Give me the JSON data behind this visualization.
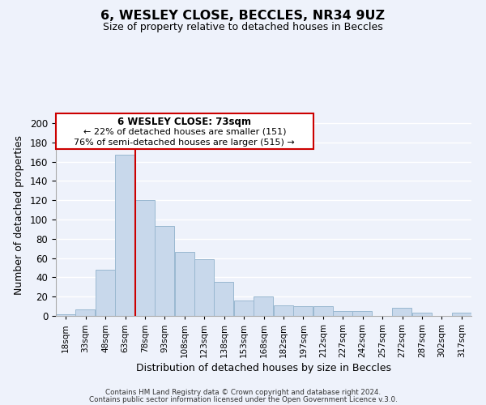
{
  "title": "6, WESLEY CLOSE, BECCLES, NR34 9UZ",
  "subtitle": "Size of property relative to detached houses in Beccles",
  "xlabel": "Distribution of detached houses by size in Beccles",
  "ylabel": "Number of detached properties",
  "bar_color": "#c8d8eb",
  "bar_edgecolor": "#9ab8d0",
  "vline_x": 78,
  "vline_color": "#cc0000",
  "categories": [
    "18sqm",
    "33sqm",
    "48sqm",
    "63sqm",
    "78sqm",
    "93sqm",
    "108sqm",
    "123sqm",
    "138sqm",
    "153sqm",
    "168sqm",
    "182sqm",
    "197sqm",
    "212sqm",
    "227sqm",
    "242sqm",
    "257sqm",
    "272sqm",
    "287sqm",
    "302sqm",
    "317sqm"
  ],
  "values": [
    2,
    7,
    48,
    167,
    120,
    93,
    66,
    59,
    35,
    16,
    20,
    11,
    10,
    10,
    5,
    5,
    0,
    8,
    3,
    0,
    3
  ],
  "bin_width": 15,
  "ylim": [
    0,
    210
  ],
  "yticks": [
    0,
    20,
    40,
    60,
    80,
    100,
    120,
    140,
    160,
    180,
    200
  ],
  "annotation_title": "6 WESLEY CLOSE: 73sqm",
  "annotation_line1": "← 22% of detached houses are smaller (151)",
  "annotation_line2": "76% of semi-detached houses are larger (515) →",
  "annotation_box_color": "white",
  "annotation_box_edgecolor": "#cc0000",
  "footer_line1": "Contains HM Land Registry data © Crown copyright and database right 2024.",
  "footer_line2": "Contains public sector information licensed under the Open Government Licence v.3.0.",
  "background_color": "#eef2fb",
  "grid_color": "white"
}
